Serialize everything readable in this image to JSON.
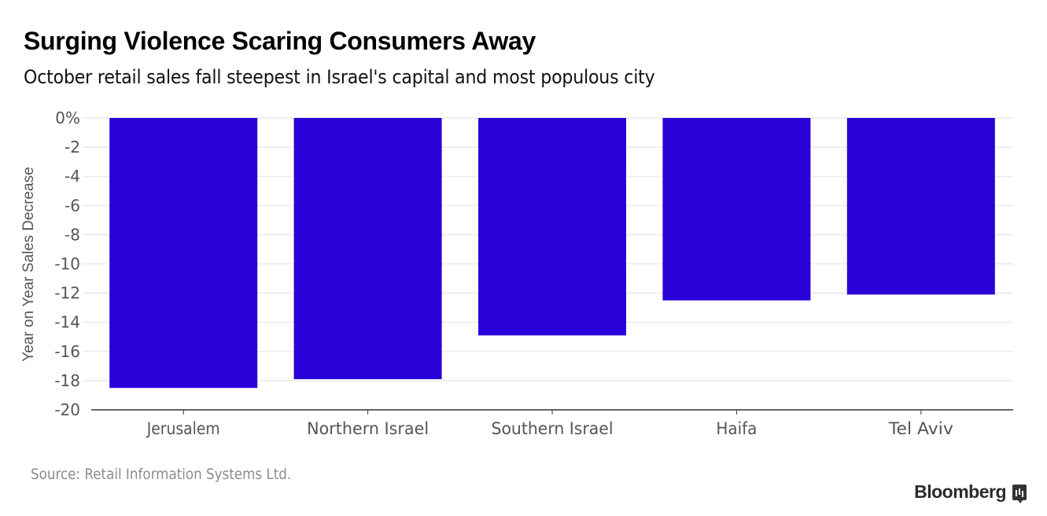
{
  "header": {
    "title": "Surging Violence Scaring Consumers Away",
    "subtitle": "October retail sales fall steepest in Israel's capital and most populous city"
  },
  "footer": {
    "source": "Source: Retail Information Systems Ltd.",
    "brand": "Bloomberg"
  },
  "colors": {
    "bar": "#2a00d8",
    "grid": "#e6e6e6",
    "axis": "#333333",
    "tick_text": "#555555"
  },
  "chart_data": {
    "type": "bar",
    "title": "Surging Violence Scaring Consumers Away",
    "subtitle": "October retail sales fall steepest in Israel's capital and most populous city",
    "xlabel": "",
    "ylabel": "Year on Year Sales Decrease",
    "categories": [
      "Jerusalem",
      "Northern Israel",
      "Southern Israel",
      "Haifa",
      "Tel Aviv"
    ],
    "values": [
      -18.5,
      -17.9,
      -14.9,
      -12.5,
      -12.1
    ],
    "ylim": [
      -20,
      0
    ],
    "yticks": [
      0,
      -2,
      -4,
      -6,
      -8,
      -10,
      -12,
      -14,
      -16,
      -18,
      -20
    ],
    "ytick_labels": [
      "0%",
      "-2",
      "-4",
      "-6",
      "-8",
      "-10",
      "-12",
      "-14",
      "-16",
      "-18",
      "-20"
    ],
    "grid": true,
    "legend": "none",
    "source": "Source: Retail Information Systems Ltd."
  }
}
